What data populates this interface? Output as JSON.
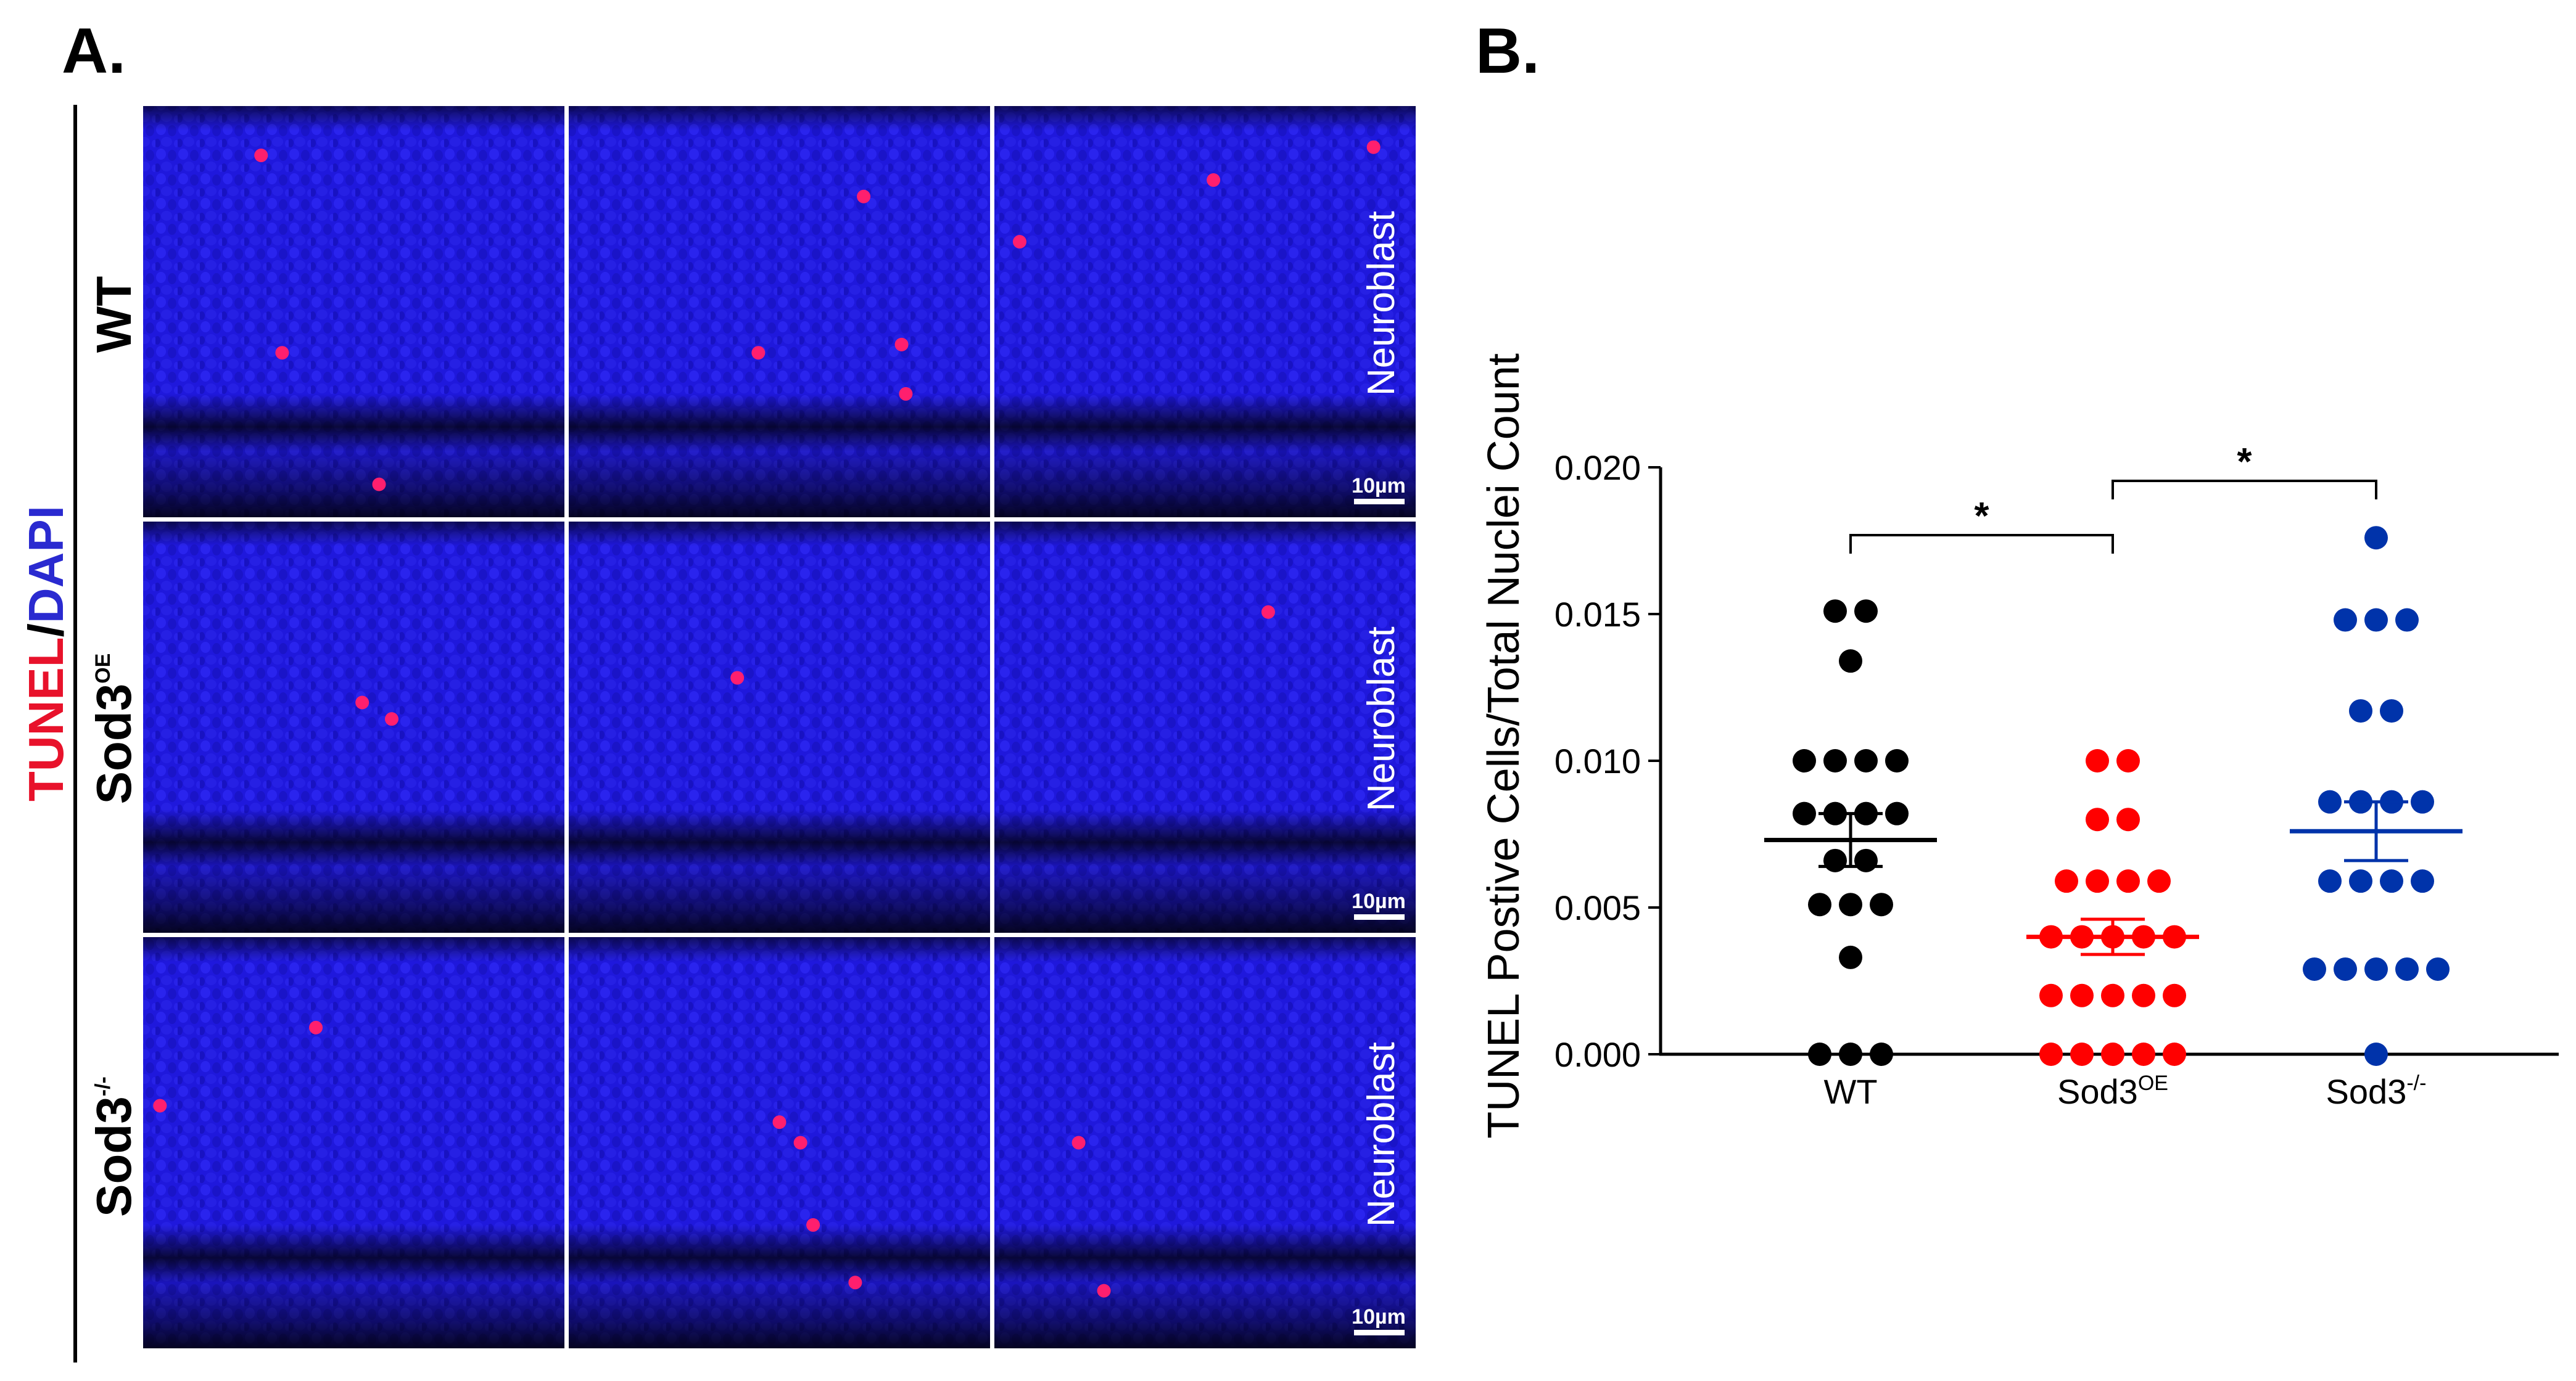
{
  "panel_a": {
    "letter": "A.",
    "stain": {
      "tunel": "TUNEL",
      "slash": "/",
      "dapi": "DAPI",
      "tunel_color": "#e8122b",
      "dapi_color": "#2a2ad0"
    },
    "rows": [
      {
        "base": "WT",
        "sup": ""
      },
      {
        "base": "Sod3",
        "sup": "OE"
      },
      {
        "base": "Sod3",
        "sup": "-/-"
      }
    ],
    "neuroblast_label": "Neuroblast",
    "scale_bar": "10µm",
    "tissue_color": "#1a12d8",
    "signal_color": "#ff1f6e"
  },
  "panel_b": {
    "letter": "B.",
    "categories": [
      {
        "base": "WT",
        "sup": ""
      },
      {
        "base": "Sod3",
        "sup": "OE"
      },
      {
        "base": "Sod3",
        "sup": "-/-"
      }
    ],
    "ylabel": "TUNEL Postive Cells/Total Nuclei Count",
    "yticks": [
      "0.020",
      "0.015",
      "0.010",
      "0.005",
      "0.000"
    ],
    "significance": [
      "*",
      "*"
    ]
  },
  "chart_data": {
    "type": "scatter",
    "title": "",
    "xlabel": "",
    "ylabel": "TUNEL Postive Cells/Total Nuclei Count",
    "categories": [
      "WT",
      "Sod3OE",
      "Sod3-/-"
    ],
    "ylim": [
      0,
      0.02
    ],
    "yticks": [
      0,
      0.005,
      0.01,
      0.015,
      0.02
    ],
    "grid": false,
    "series": [
      {
        "color": "#000000",
        "values": [
          0.0151,
          0.0151,
          0.0134,
          0.01,
          0.01,
          0.01,
          0.01,
          0.0082,
          0.0082,
          0.0082,
          0.0082,
          0.0066,
          0.0066,
          0.0051,
          0.0051,
          0.0051,
          0.0033,
          0.0,
          0.0,
          0.0
        ],
        "mean": 0.0073,
        "sem": 0.0009
      },
      {
        "color": "#ff0000",
        "values": [
          0.01,
          0.01,
          0.008,
          0.008,
          0.0059,
          0.0059,
          0.0059,
          0.0059,
          0.004,
          0.004,
          0.004,
          0.004,
          0.004,
          0.002,
          0.002,
          0.002,
          0.002,
          0.002,
          0.0,
          0.0,
          0.0,
          0.0,
          0.0
        ],
        "mean": 0.004,
        "sem": 0.0006
      },
      {
        "color": "#0033aa",
        "values": [
          0.0176,
          0.0148,
          0.0148,
          0.0148,
          0.0117,
          0.0117,
          0.0086,
          0.0086,
          0.0086,
          0.0086,
          0.0059,
          0.0059,
          0.0059,
          0.0059,
          0.0029,
          0.0029,
          0.0029,
          0.0029,
          0.0029,
          0.0
        ],
        "mean": 0.0076,
        "sem": 0.001
      }
    ],
    "comparisons": [
      {
        "pair": [
          "WT",
          "Sod3OE"
        ],
        "label": "*"
      },
      {
        "pair": [
          "Sod3OE",
          "Sod3-/-"
        ],
        "label": "*"
      }
    ]
  }
}
